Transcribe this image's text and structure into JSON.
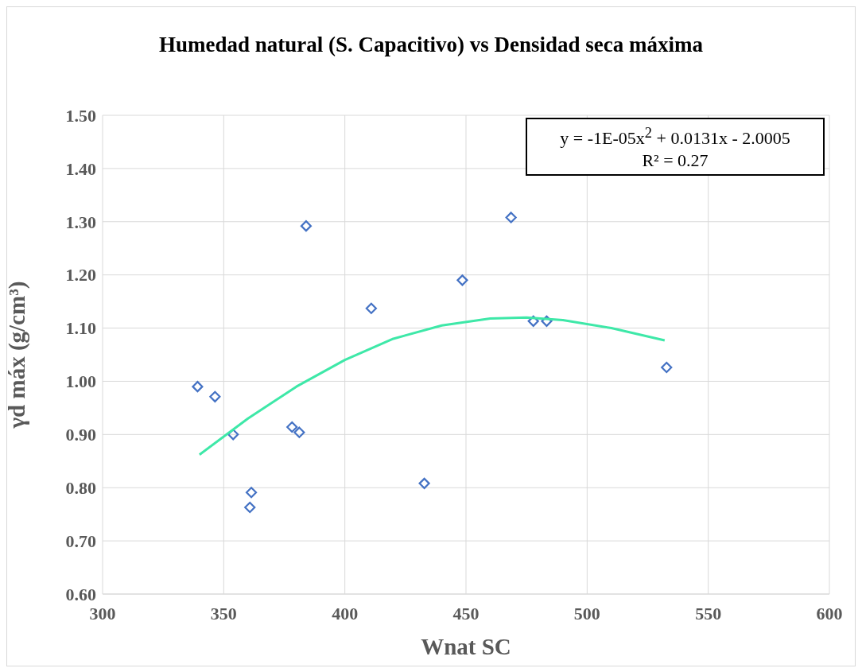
{
  "chart_data": {
    "type": "scatter",
    "title": "Humedad natural (S. Capacitivo) vs Densidad seca máxima",
    "xlabel": "Wnat SC",
    "ylabel": "γd máx (g/cm³)",
    "xlim": [
      300,
      600
    ],
    "xticks": [
      300,
      350,
      400,
      450,
      500,
      550,
      600
    ],
    "ylim": [
      0.6,
      1.5
    ],
    "yticks": [
      {
        "value": 0.6,
        "label": "0.60"
      },
      {
        "value": 0.7,
        "label": "0.70"
      },
      {
        "value": 0.8,
        "label": "0.80"
      },
      {
        "value": 0.9,
        "label": "0.90"
      },
      {
        "value": 1.0,
        "label": "1.00"
      },
      {
        "value": 1.1,
        "label": "1.10"
      },
      {
        "value": 1.2,
        "label": "1.20"
      },
      {
        "value": 1.3,
        "label": "1.30"
      },
      {
        "value": 1.4,
        "label": "1.40"
      },
      {
        "value": 1.5,
        "label": "1.50"
      }
    ],
    "grid": true,
    "annotations": [
      "y = -1E-05x$^{2}$ + 0.0131x - 2.0005",
      "R² = 0.27"
    ],
    "series": [
      {
        "color": "#4472c4",
        "marker": "diamond",
        "x": [
          339.2,
          346.4,
          353.9,
          361.4,
          360.8,
          378.2,
          381.2,
          384,
          410.9,
          432.8,
          448.5,
          468.6,
          477.8,
          483.3,
          532.8
        ],
        "values": [
          0.99,
          0.971,
          0.9,
          0.791,
          0.763,
          0.914,
          0.904,
          1.292,
          1.137,
          0.808,
          1.19,
          1.308,
          1.113,
          1.113,
          1.026
        ]
      },
      {
        "type": "line",
        "color": "#3ee8a8",
        "marker": "none",
        "x": [
          340,
          360,
          380,
          400,
          420,
          440,
          460,
          475,
          490,
          510,
          532
        ],
        "values": [
          0.862,
          0.93,
          0.99,
          1.04,
          1.08,
          1.105,
          1.118,
          1.12,
          1.115,
          1.1,
          1.077
        ]
      }
    ]
  }
}
